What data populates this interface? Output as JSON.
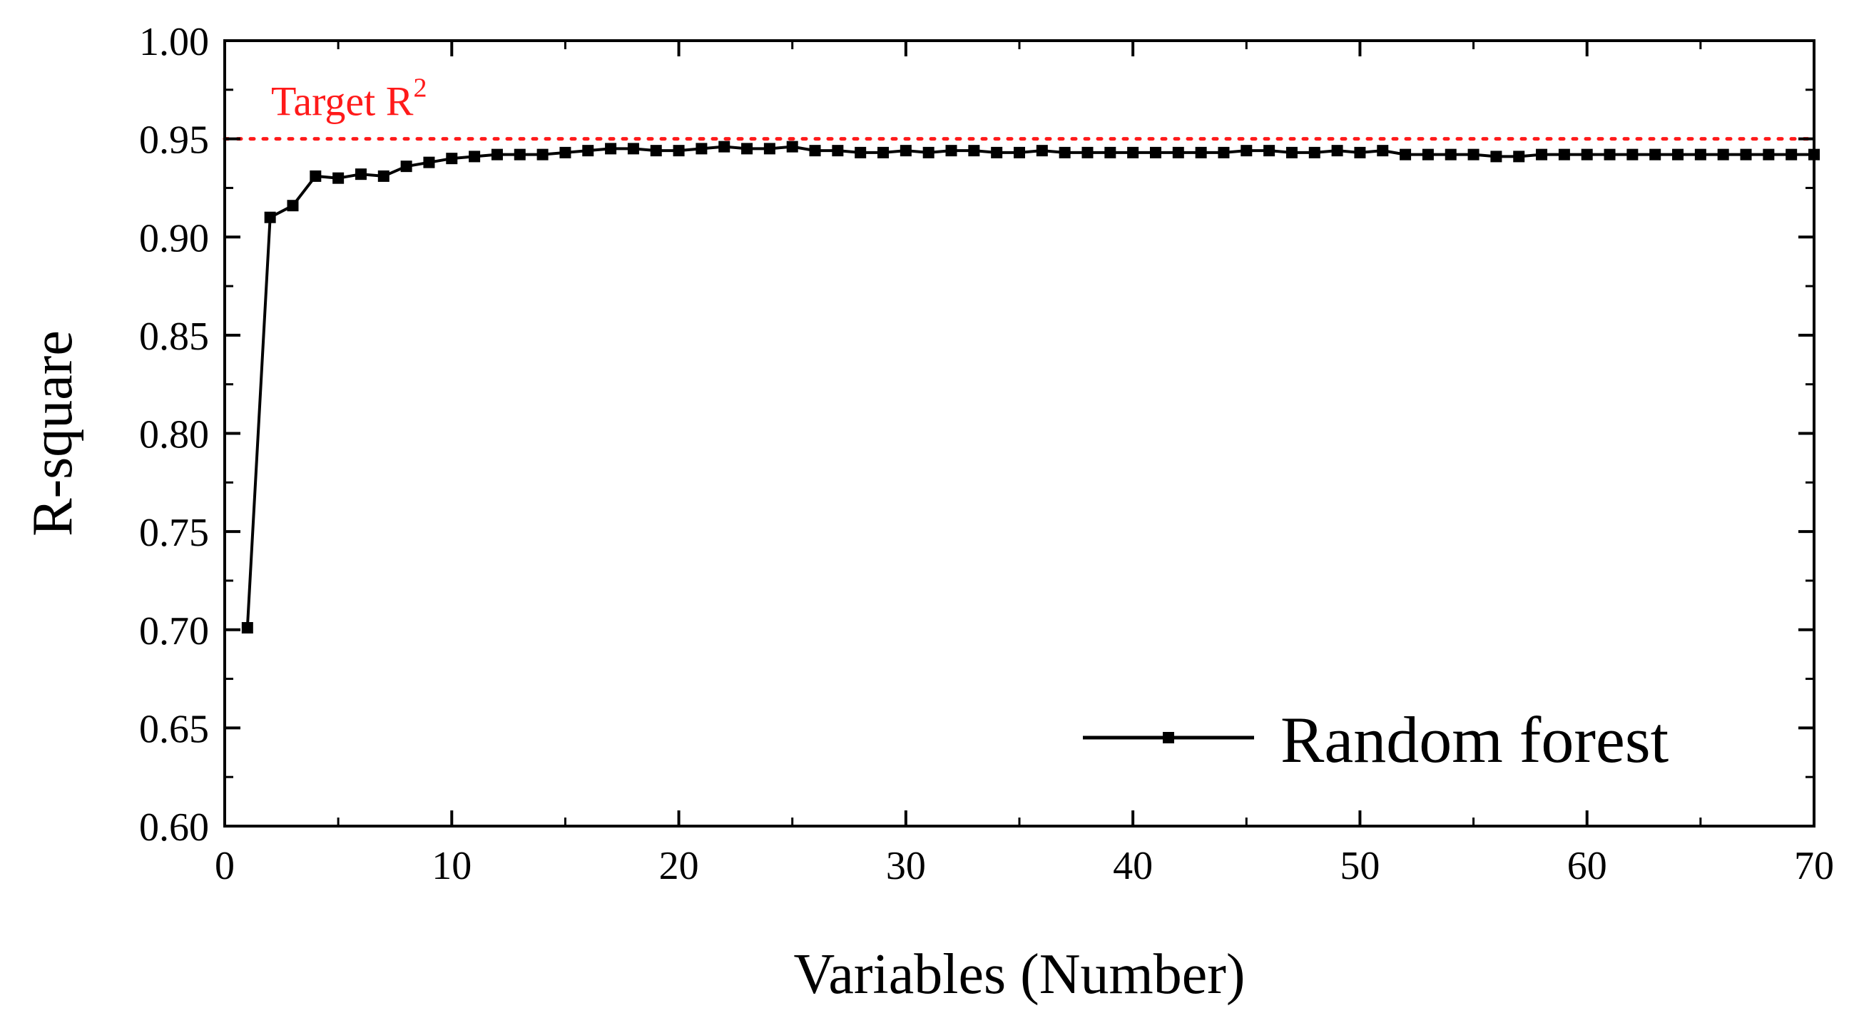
{
  "chart_data": {
    "type": "line",
    "title": "",
    "xlabel": "Variables (Number)",
    "ylabel": "R-square",
    "xlim": [
      0,
      70
    ],
    "ylim": [
      0.6,
      1.0
    ],
    "x_ticks": [
      0,
      10,
      20,
      30,
      40,
      50,
      60,
      70
    ],
    "y_ticks": [
      0.6,
      0.65,
      0.7,
      0.75,
      0.8,
      0.85,
      0.9,
      0.95,
      1.0
    ],
    "x_tick_labels": [
      "0",
      "10",
      "20",
      "30",
      "40",
      "50",
      "60",
      "70"
    ],
    "y_tick_labels": [
      "0.60",
      "0.65",
      "0.70",
      "0.75",
      "0.80",
      "0.85",
      "0.90",
      "0.95",
      "1.00"
    ],
    "grid": false,
    "legend_position": "bottom-right",
    "series": [
      {
        "name": "Random forest",
        "color": "#000000",
        "marker": "square",
        "x": [
          1,
          2,
          3,
          4,
          5,
          6,
          7,
          8,
          9,
          10,
          11,
          12,
          13,
          14,
          15,
          16,
          17,
          18,
          19,
          20,
          21,
          22,
          23,
          24,
          25,
          26,
          27,
          28,
          29,
          30,
          31,
          32,
          33,
          34,
          35,
          36,
          37,
          38,
          39,
          40,
          41,
          42,
          43,
          44,
          45,
          46,
          47,
          48,
          49,
          50,
          51,
          52,
          53,
          54,
          55,
          56,
          57,
          58,
          59,
          60,
          61,
          62,
          63,
          64,
          65,
          66,
          67,
          68,
          69,
          70
        ],
        "y": [
          0.701,
          0.91,
          0.916,
          0.931,
          0.93,
          0.932,
          0.931,
          0.936,
          0.938,
          0.94,
          0.941,
          0.942,
          0.942,
          0.942,
          0.943,
          0.944,
          0.945,
          0.945,
          0.944,
          0.944,
          0.945,
          0.946,
          0.945,
          0.945,
          0.946,
          0.944,
          0.944,
          0.943,
          0.943,
          0.944,
          0.943,
          0.944,
          0.944,
          0.943,
          0.943,
          0.944,
          0.943,
          0.943,
          0.943,
          0.943,
          0.943,
          0.943,
          0.943,
          0.943,
          0.944,
          0.944,
          0.943,
          0.943,
          0.944,
          0.943,
          0.944,
          0.942,
          0.942,
          0.942,
          0.942,
          0.941,
          0.941,
          0.942,
          0.942,
          0.942,
          0.942,
          0.942,
          0.942,
          0.942,
          0.942,
          0.942,
          0.942,
          0.942,
          0.942,
          0.942
        ]
      }
    ],
    "reference_line": {
      "y": 0.95,
      "label_main": "Target R",
      "label_sup": "2",
      "color": "#ff1a1a",
      "style": "dotted"
    }
  }
}
